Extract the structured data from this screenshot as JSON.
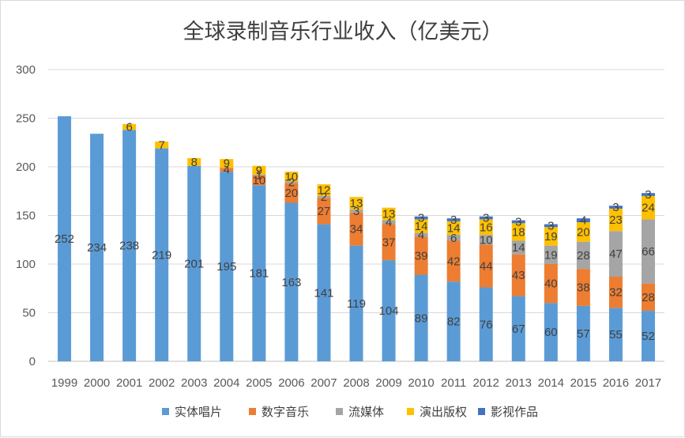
{
  "chart_data": {
    "type": "bar",
    "stacked": true,
    "title": "全球录制音乐行业收入（亿美元）",
    "xlabel": "",
    "ylabel": "",
    "ylim": [
      0,
      300
    ],
    "yticks": [
      0,
      50,
      100,
      150,
      200,
      250,
      300
    ],
    "grid": "horizontal",
    "legend_position": "bottom",
    "categories": [
      "1999",
      "2000",
      "2001",
      "2002",
      "2003",
      "2004",
      "2005",
      "2006",
      "2007",
      "2008",
      "2009",
      "2010",
      "2011",
      "2012",
      "2013",
      "2014",
      "2015",
      "2016",
      "2017"
    ],
    "series": [
      {
        "name": "实体唱片",
        "color": "#5b9bd5",
        "values": [
          252,
          234,
          238,
          219,
          201,
          195,
          181,
          163,
          141,
          119,
          104,
          89,
          82,
          76,
          67,
          60,
          57,
          55,
          52
        ]
      },
      {
        "name": "数字音乐",
        "color": "#ed7d31",
        "values": [
          null,
          null,
          null,
          null,
          null,
          4,
          10,
          20,
          27,
          34,
          37,
          39,
          42,
          44,
          43,
          40,
          38,
          32,
          28
        ]
      },
      {
        "name": "流媒体",
        "color": "#a5a5a5",
        "values": [
          null,
          null,
          null,
          null,
          null,
          null,
          1,
          2,
          2,
          3,
          4,
          4,
          6,
          10,
          14,
          19,
          28,
          47,
          66
        ]
      },
      {
        "name": "演出版权",
        "color": "#ffc000",
        "values": [
          null,
          null,
          6,
          7,
          8,
          9,
          9,
          10,
          12,
          13,
          13,
          14,
          14,
          16,
          18,
          19,
          20,
          23,
          24
        ]
      },
      {
        "name": "影视作品",
        "color": "#4472c4",
        "values": [
          null,
          null,
          null,
          null,
          null,
          null,
          null,
          null,
          null,
          null,
          null,
          3,
          3,
          3,
          3,
          3,
          4,
          3,
          3
        ]
      }
    ]
  }
}
